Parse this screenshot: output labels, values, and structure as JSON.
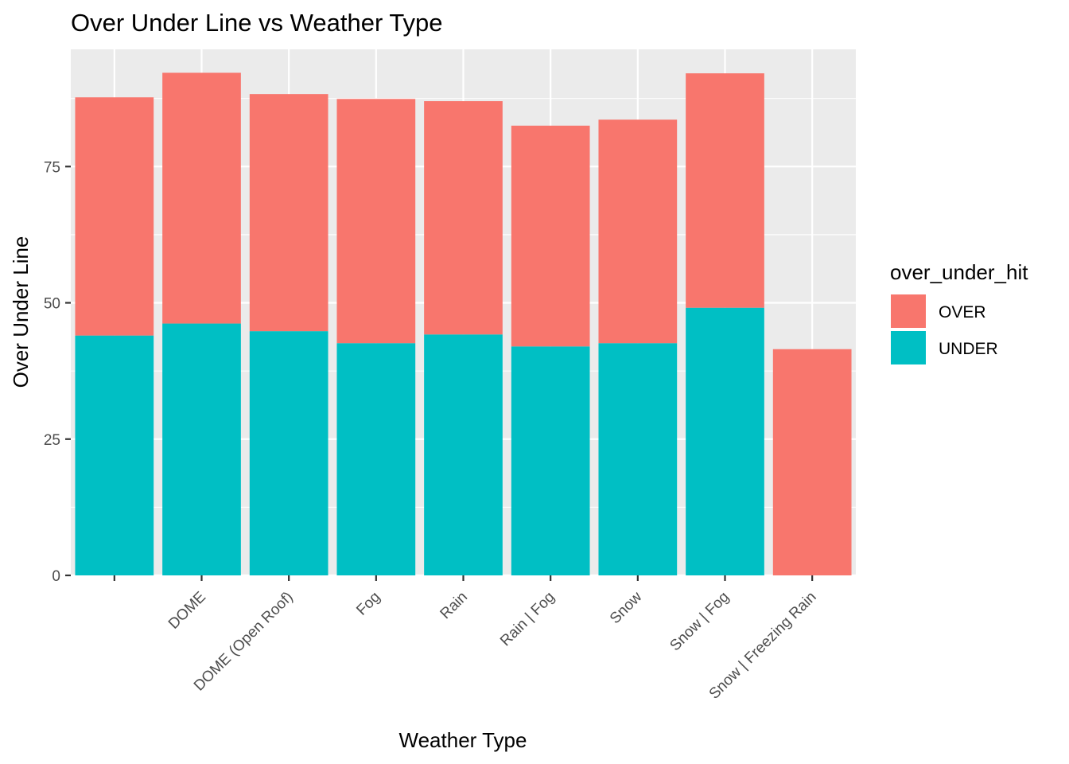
{
  "chart_data": {
    "type": "bar",
    "stacked": true,
    "title": "Over Under Line vs Weather Type",
    "xlabel": "Weather Type",
    "ylabel": "Over Under Line",
    "categories": [
      "",
      "DOME",
      "DOME (Open Roof)",
      "Fog",
      "Rain",
      "Rain | Fog",
      "Snow",
      "Snow | Fog",
      "Snow | Freezing Rain"
    ],
    "series": [
      {
        "name": "OVER",
        "color": "#F8766D",
        "values": [
          43.7,
          46.0,
          43.5,
          44.8,
          42.8,
          40.5,
          41.0,
          43.0,
          41.5
        ]
      },
      {
        "name": "UNDER",
        "color": "#00BFC4",
        "values": [
          44.0,
          46.2,
          44.8,
          42.6,
          44.2,
          42.0,
          42.6,
          49.1,
          0
        ]
      }
    ],
    "ylim": [
      0,
      96.5
    ],
    "yticks": [
      0,
      25,
      50,
      75
    ],
    "legend": {
      "title": "over_under_hit",
      "position": "right"
    },
    "grid": true,
    "panel_background": "#EBEBEB"
  }
}
